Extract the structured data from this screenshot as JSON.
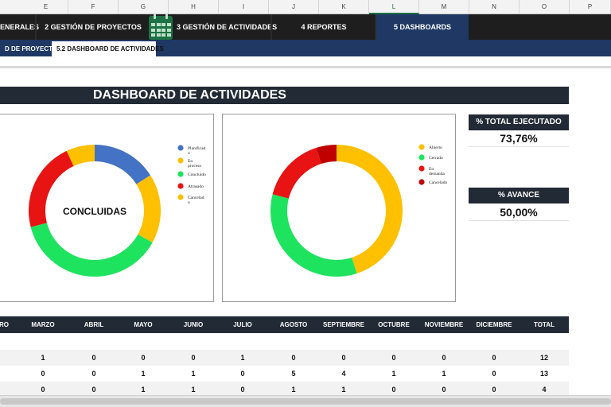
{
  "column_headers": [
    "E",
    "F",
    "G",
    "H",
    "I",
    "J",
    "K",
    "L",
    "M",
    "N",
    "O",
    "P"
  ],
  "nav": {
    "tabs": [
      {
        "label": "ENERALES"
      },
      {
        "label": "2 GESTIÓN DE PROYECTOS"
      },
      {
        "label": "3 GESTIÓN DE ACTIVIDADES"
      },
      {
        "label": "4 REPORTES"
      },
      {
        "label": "5 DASHBOARDS"
      }
    ]
  },
  "subnav": {
    "tabs": [
      {
        "label": "D DE PROYECTOS"
      },
      {
        "label": "5.2 DASHBOARD DE ACTIVIDADES"
      }
    ]
  },
  "dashboard": {
    "title": "DASHBOARD DE ACTIVIDADES"
  },
  "chart_data": [
    {
      "type": "pie",
      "title": "CONCLUIDAS",
      "categories": [
        "Planificado",
        "En proceso",
        "Concluido",
        "Atrasado",
        "Cancelado"
      ],
      "legend_labels": [
        "Planificad\no",
        "En\nproceso",
        "Concluido",
        "Atrasado",
        "Cancelad\no"
      ],
      "values": [
        16,
        17,
        38,
        22,
        7
      ],
      "colors": [
        "#4472c4",
        "#ffc000",
        "#1ee35f",
        "#e81313",
        "#ffc000"
      ],
      "legend": "right"
    },
    {
      "type": "pie",
      "title": "",
      "categories": [
        "Abierto",
        "Cerrado",
        "En demanda",
        "Cancelado"
      ],
      "legend_labels": [
        "Abierto",
        "Cerrado",
        "En\ndemanda",
        "Cancelado"
      ],
      "values": [
        45,
        34,
        16,
        5
      ],
      "colors": [
        "#ffc000",
        "#1ee35f",
        "#e81313",
        "#c00000"
      ],
      "legend": "right"
    }
  ],
  "kpis": [
    {
      "label": "% TOTAL EJECUTADO",
      "value": "73,76%"
    },
    {
      "label": "% AVANCE",
      "value": "50,00%"
    }
  ],
  "table": {
    "columns": [
      "RO",
      "MARZO",
      "ABRIL",
      "MAYO",
      "JUNIO",
      "JULIO",
      "AGOSTO",
      "SEPTIEMBRE",
      "OCTUBRE",
      "NOVIEMBRE",
      "DICIEMBRE",
      "TOTAL"
    ],
    "rows": [
      [
        "",
        "1",
        "0",
        "0",
        "0",
        "1",
        "0",
        "0",
        "0",
        "0",
        "0",
        "12"
      ],
      [
        "",
        "0",
        "0",
        "1",
        "1",
        "0",
        "5",
        "4",
        "1",
        "1",
        "0",
        "13"
      ],
      [
        "",
        "0",
        "0",
        "1",
        "1",
        "0",
        "1",
        "1",
        "0",
        "0",
        "0",
        "4"
      ]
    ]
  }
}
